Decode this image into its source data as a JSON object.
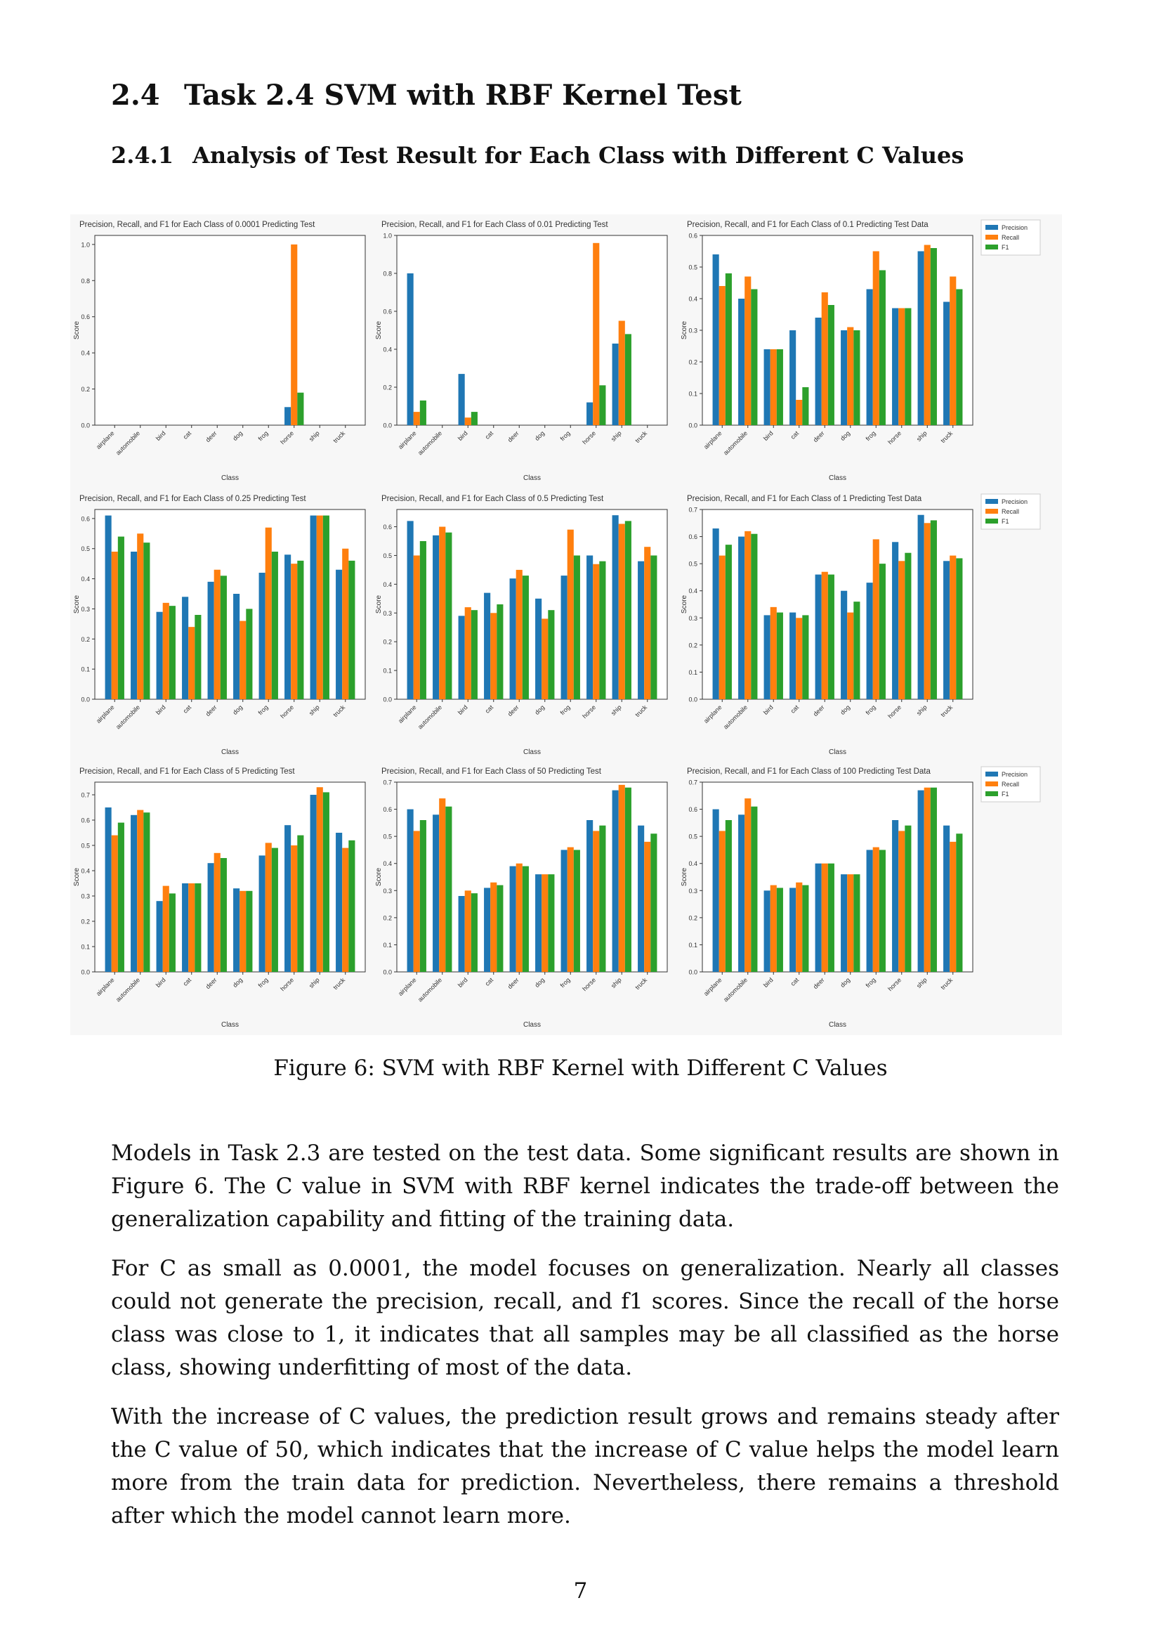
{
  "section": {
    "number": "2.4",
    "title": "Task 2.4 SVM with RBF Kernel Test"
  },
  "subsection": {
    "number": "2.4.1",
    "title": "Analysis of Test Result for Each Class with Different C Values"
  },
  "figure": {
    "caption": "Figure 6: SVM with RBF Kernel with Different C Values"
  },
  "paragraphs": [
    "Models in Task 2.3 are tested on the test data. Some significant results are shown in Figure 6. The C value in SVM with RBF kernel indicates the trade-off between the generalization capability and fitting of the training data.",
    "For C as small as 0.0001, the model focuses on generalization. Nearly all classes could not generate the precision, recall, and f1 scores. Since the recall of the horse class was close to 1, it indicates that all samples may be all classified as the horse class, showing underfitting of most of the data.",
    "With the increase of C values, the prediction result grows and remains steady after the C value of 50, which indicates that the increase of C value helps the model learn more from the train data for prediction. Nevertheless, there remains a threshold after which the model cannot learn more."
  ],
  "page_number": "7",
  "colors": {
    "Precision": "#1f77b4",
    "Recall": "#ff7f0e",
    "F1": "#2ca02c"
  },
  "chart_data": [
    {
      "type": "bar",
      "title": "Precision, Recall, and F1 for Each Class of 0.0001 Predicting Test",
      "xlabel": "Class",
      "ylabel": "Score",
      "ylim": [
        0,
        1.05
      ],
      "yticks": [
        0.0,
        0.2,
        0.4,
        0.6,
        0.8,
        1.0
      ],
      "legend": false,
      "categories": [
        "airplane",
        "automobile",
        "bird",
        "cat",
        "deer",
        "dog",
        "frog",
        "horse",
        "ship",
        "truck"
      ],
      "series": [
        {
          "name": "Precision",
          "values": [
            0,
            0,
            0,
            0,
            0,
            0,
            0,
            0.1,
            0,
            0
          ]
        },
        {
          "name": "Recall",
          "values": [
            0,
            0,
            0,
            0,
            0,
            0,
            0,
            1.0,
            0,
            0
          ]
        },
        {
          "name": "F1",
          "values": [
            0,
            0,
            0,
            0,
            0,
            0,
            0,
            0.18,
            0,
            0
          ]
        }
      ]
    },
    {
      "type": "bar",
      "title": "Precision, Recall, and F1 for Each Class of 0.01 Predicting Test",
      "xlabel": "Class",
      "ylabel": "Score",
      "ylim": [
        0,
        1.0
      ],
      "yticks": [
        0.0,
        0.2,
        0.4,
        0.6,
        0.8,
        1.0
      ],
      "legend": false,
      "categories": [
        "airplane",
        "automobile",
        "bird",
        "cat",
        "deer",
        "dog",
        "frog",
        "horse",
        "ship",
        "truck"
      ],
      "series": [
        {
          "name": "Precision",
          "values": [
            0.8,
            0,
            0.27,
            0,
            0,
            0,
            0,
            0.12,
            0.43,
            0
          ]
        },
        {
          "name": "Recall",
          "values": [
            0.07,
            0,
            0.04,
            0,
            0,
            0,
            0,
            0.96,
            0.55,
            0
          ]
        },
        {
          "name": "F1",
          "values": [
            0.13,
            0,
            0.07,
            0,
            0,
            0,
            0,
            0.21,
            0.48,
            0
          ]
        }
      ]
    },
    {
      "type": "bar",
      "title": "Precision, Recall, and F1 for Each Class of 0.1 Predicting Test Data",
      "xlabel": "Class",
      "ylabel": "Score",
      "ylim": [
        0,
        0.6
      ],
      "yticks": [
        0.0,
        0.1,
        0.2,
        0.3,
        0.4,
        0.5,
        0.6
      ],
      "legend": true,
      "categories": [
        "airplane",
        "automobile",
        "bird",
        "cat",
        "deer",
        "dog",
        "frog",
        "horse",
        "ship",
        "truck"
      ],
      "series": [
        {
          "name": "Precision",
          "values": [
            0.54,
            0.4,
            0.24,
            0.3,
            0.34,
            0.3,
            0.43,
            0.37,
            0.55,
            0.39
          ]
        },
        {
          "name": "Recall",
          "values": [
            0.44,
            0.47,
            0.24,
            0.08,
            0.42,
            0.31,
            0.55,
            0.37,
            0.57,
            0.47
          ]
        },
        {
          "name": "F1",
          "values": [
            0.48,
            0.43,
            0.24,
            0.12,
            0.38,
            0.3,
            0.49,
            0.37,
            0.56,
            0.43
          ]
        }
      ]
    },
    {
      "type": "bar",
      "title": "Precision, Recall, and F1 for Each Class of 0.25 Predicting Test",
      "xlabel": "Class",
      "ylabel": "Score",
      "ylim": [
        0,
        0.63
      ],
      "yticks": [
        0.0,
        0.1,
        0.2,
        0.3,
        0.4,
        0.5,
        0.6
      ],
      "legend": false,
      "categories": [
        "airplane",
        "automobile",
        "bird",
        "cat",
        "deer",
        "dog",
        "frog",
        "horse",
        "ship",
        "truck"
      ],
      "series": [
        {
          "name": "Precision",
          "values": [
            0.61,
            0.49,
            0.29,
            0.34,
            0.39,
            0.35,
            0.42,
            0.48,
            0.61,
            0.43
          ]
        },
        {
          "name": "Recall",
          "values": [
            0.49,
            0.55,
            0.32,
            0.24,
            0.43,
            0.26,
            0.57,
            0.45,
            0.61,
            0.5
          ]
        },
        {
          "name": "F1",
          "values": [
            0.54,
            0.52,
            0.31,
            0.28,
            0.41,
            0.3,
            0.49,
            0.46,
            0.61,
            0.46
          ]
        }
      ]
    },
    {
      "type": "bar",
      "title": "Precision, Recall, and F1 for Each Class of 0.5 Predicting Test",
      "xlabel": "Class",
      "ylabel": "Score",
      "ylim": [
        0,
        0.66
      ],
      "yticks": [
        0.0,
        0.1,
        0.2,
        0.3,
        0.4,
        0.5,
        0.6
      ],
      "legend": false,
      "categories": [
        "airplane",
        "automobile",
        "bird",
        "cat",
        "deer",
        "dog",
        "frog",
        "horse",
        "ship",
        "truck"
      ],
      "series": [
        {
          "name": "Precision",
          "values": [
            0.62,
            0.57,
            0.29,
            0.37,
            0.42,
            0.35,
            0.43,
            0.5,
            0.64,
            0.48
          ]
        },
        {
          "name": "Recall",
          "values": [
            0.5,
            0.6,
            0.32,
            0.3,
            0.45,
            0.28,
            0.59,
            0.47,
            0.61,
            0.53
          ]
        },
        {
          "name": "F1",
          "values": [
            0.55,
            0.58,
            0.31,
            0.33,
            0.43,
            0.31,
            0.5,
            0.48,
            0.62,
            0.5
          ]
        }
      ]
    },
    {
      "type": "bar",
      "title": "Precision, Recall, and F1 for Each Class of 1 Predicting Test Data",
      "xlabel": "Class",
      "ylabel": "Score",
      "ylim": [
        0,
        0.7
      ],
      "yticks": [
        0.0,
        0.1,
        0.2,
        0.3,
        0.4,
        0.5,
        0.6,
        0.7
      ],
      "legend": true,
      "categories": [
        "airplane",
        "automobile",
        "bird",
        "cat",
        "deer",
        "dog",
        "frog",
        "horse",
        "ship",
        "truck"
      ],
      "series": [
        {
          "name": "Precision",
          "values": [
            0.63,
            0.6,
            0.31,
            0.32,
            0.46,
            0.4,
            0.43,
            0.58,
            0.68,
            0.51
          ]
        },
        {
          "name": "Recall",
          "values": [
            0.53,
            0.62,
            0.34,
            0.3,
            0.47,
            0.32,
            0.59,
            0.51,
            0.65,
            0.53
          ]
        },
        {
          "name": "F1",
          "values": [
            0.57,
            0.61,
            0.32,
            0.31,
            0.46,
            0.36,
            0.5,
            0.54,
            0.66,
            0.52
          ]
        }
      ]
    },
    {
      "type": "bar",
      "title": "Precision, Recall, and F1 for Each Class of 5 Predicting Test",
      "xlabel": "Class",
      "ylabel": "Score",
      "ylim": [
        0,
        0.75
      ],
      "yticks": [
        0.0,
        0.1,
        0.2,
        0.3,
        0.4,
        0.5,
        0.6,
        0.7
      ],
      "legend": false,
      "categories": [
        "airplane",
        "automobile",
        "bird",
        "cat",
        "deer",
        "dog",
        "frog",
        "horse",
        "ship",
        "truck"
      ],
      "series": [
        {
          "name": "Precision",
          "values": [
            0.65,
            0.62,
            0.28,
            0.35,
            0.43,
            0.33,
            0.46,
            0.58,
            0.7,
            0.55
          ]
        },
        {
          "name": "Recall",
          "values": [
            0.54,
            0.64,
            0.34,
            0.35,
            0.47,
            0.32,
            0.51,
            0.5,
            0.73,
            0.49
          ]
        },
        {
          "name": "F1",
          "values": [
            0.59,
            0.63,
            0.31,
            0.35,
            0.45,
            0.32,
            0.49,
            0.54,
            0.71,
            0.52
          ]
        }
      ]
    },
    {
      "type": "bar",
      "title": "Precision, Recall, and F1 for Each Class of 50 Predicting Test",
      "xlabel": "Class",
      "ylabel": "Score",
      "ylim": [
        0,
        0.7
      ],
      "yticks": [
        0.0,
        0.1,
        0.2,
        0.3,
        0.4,
        0.5,
        0.6,
        0.7
      ],
      "legend": false,
      "categories": [
        "airplane",
        "automobile",
        "bird",
        "cat",
        "deer",
        "dog",
        "frog",
        "horse",
        "ship",
        "truck"
      ],
      "series": [
        {
          "name": "Precision",
          "values": [
            0.6,
            0.58,
            0.28,
            0.31,
            0.39,
            0.36,
            0.45,
            0.56,
            0.67,
            0.54
          ]
        },
        {
          "name": "Recall",
          "values": [
            0.52,
            0.64,
            0.3,
            0.33,
            0.4,
            0.36,
            0.46,
            0.52,
            0.69,
            0.48
          ]
        },
        {
          "name": "F1",
          "values": [
            0.56,
            0.61,
            0.29,
            0.32,
            0.39,
            0.36,
            0.45,
            0.54,
            0.68,
            0.51
          ]
        }
      ]
    },
    {
      "type": "bar",
      "title": "Precision, Recall, and F1 for Each Class of 100 Predicting Test Data",
      "xlabel": "Class",
      "ylabel": "Score",
      "ylim": [
        0,
        0.7
      ],
      "yticks": [
        0.0,
        0.1,
        0.2,
        0.3,
        0.4,
        0.5,
        0.6,
        0.7
      ],
      "legend": true,
      "categories": [
        "airplane",
        "automobile",
        "bird",
        "cat",
        "deer",
        "dog",
        "frog",
        "horse",
        "ship",
        "truck"
      ],
      "series": [
        {
          "name": "Precision",
          "values": [
            0.6,
            0.58,
            0.3,
            0.31,
            0.4,
            0.36,
            0.45,
            0.56,
            0.67,
            0.54
          ]
        },
        {
          "name": "Recall",
          "values": [
            0.52,
            0.64,
            0.32,
            0.33,
            0.4,
            0.36,
            0.46,
            0.52,
            0.68,
            0.48
          ]
        },
        {
          "name": "F1",
          "values": [
            0.56,
            0.61,
            0.31,
            0.32,
            0.4,
            0.36,
            0.45,
            0.54,
            0.68,
            0.51
          ]
        }
      ]
    }
  ]
}
